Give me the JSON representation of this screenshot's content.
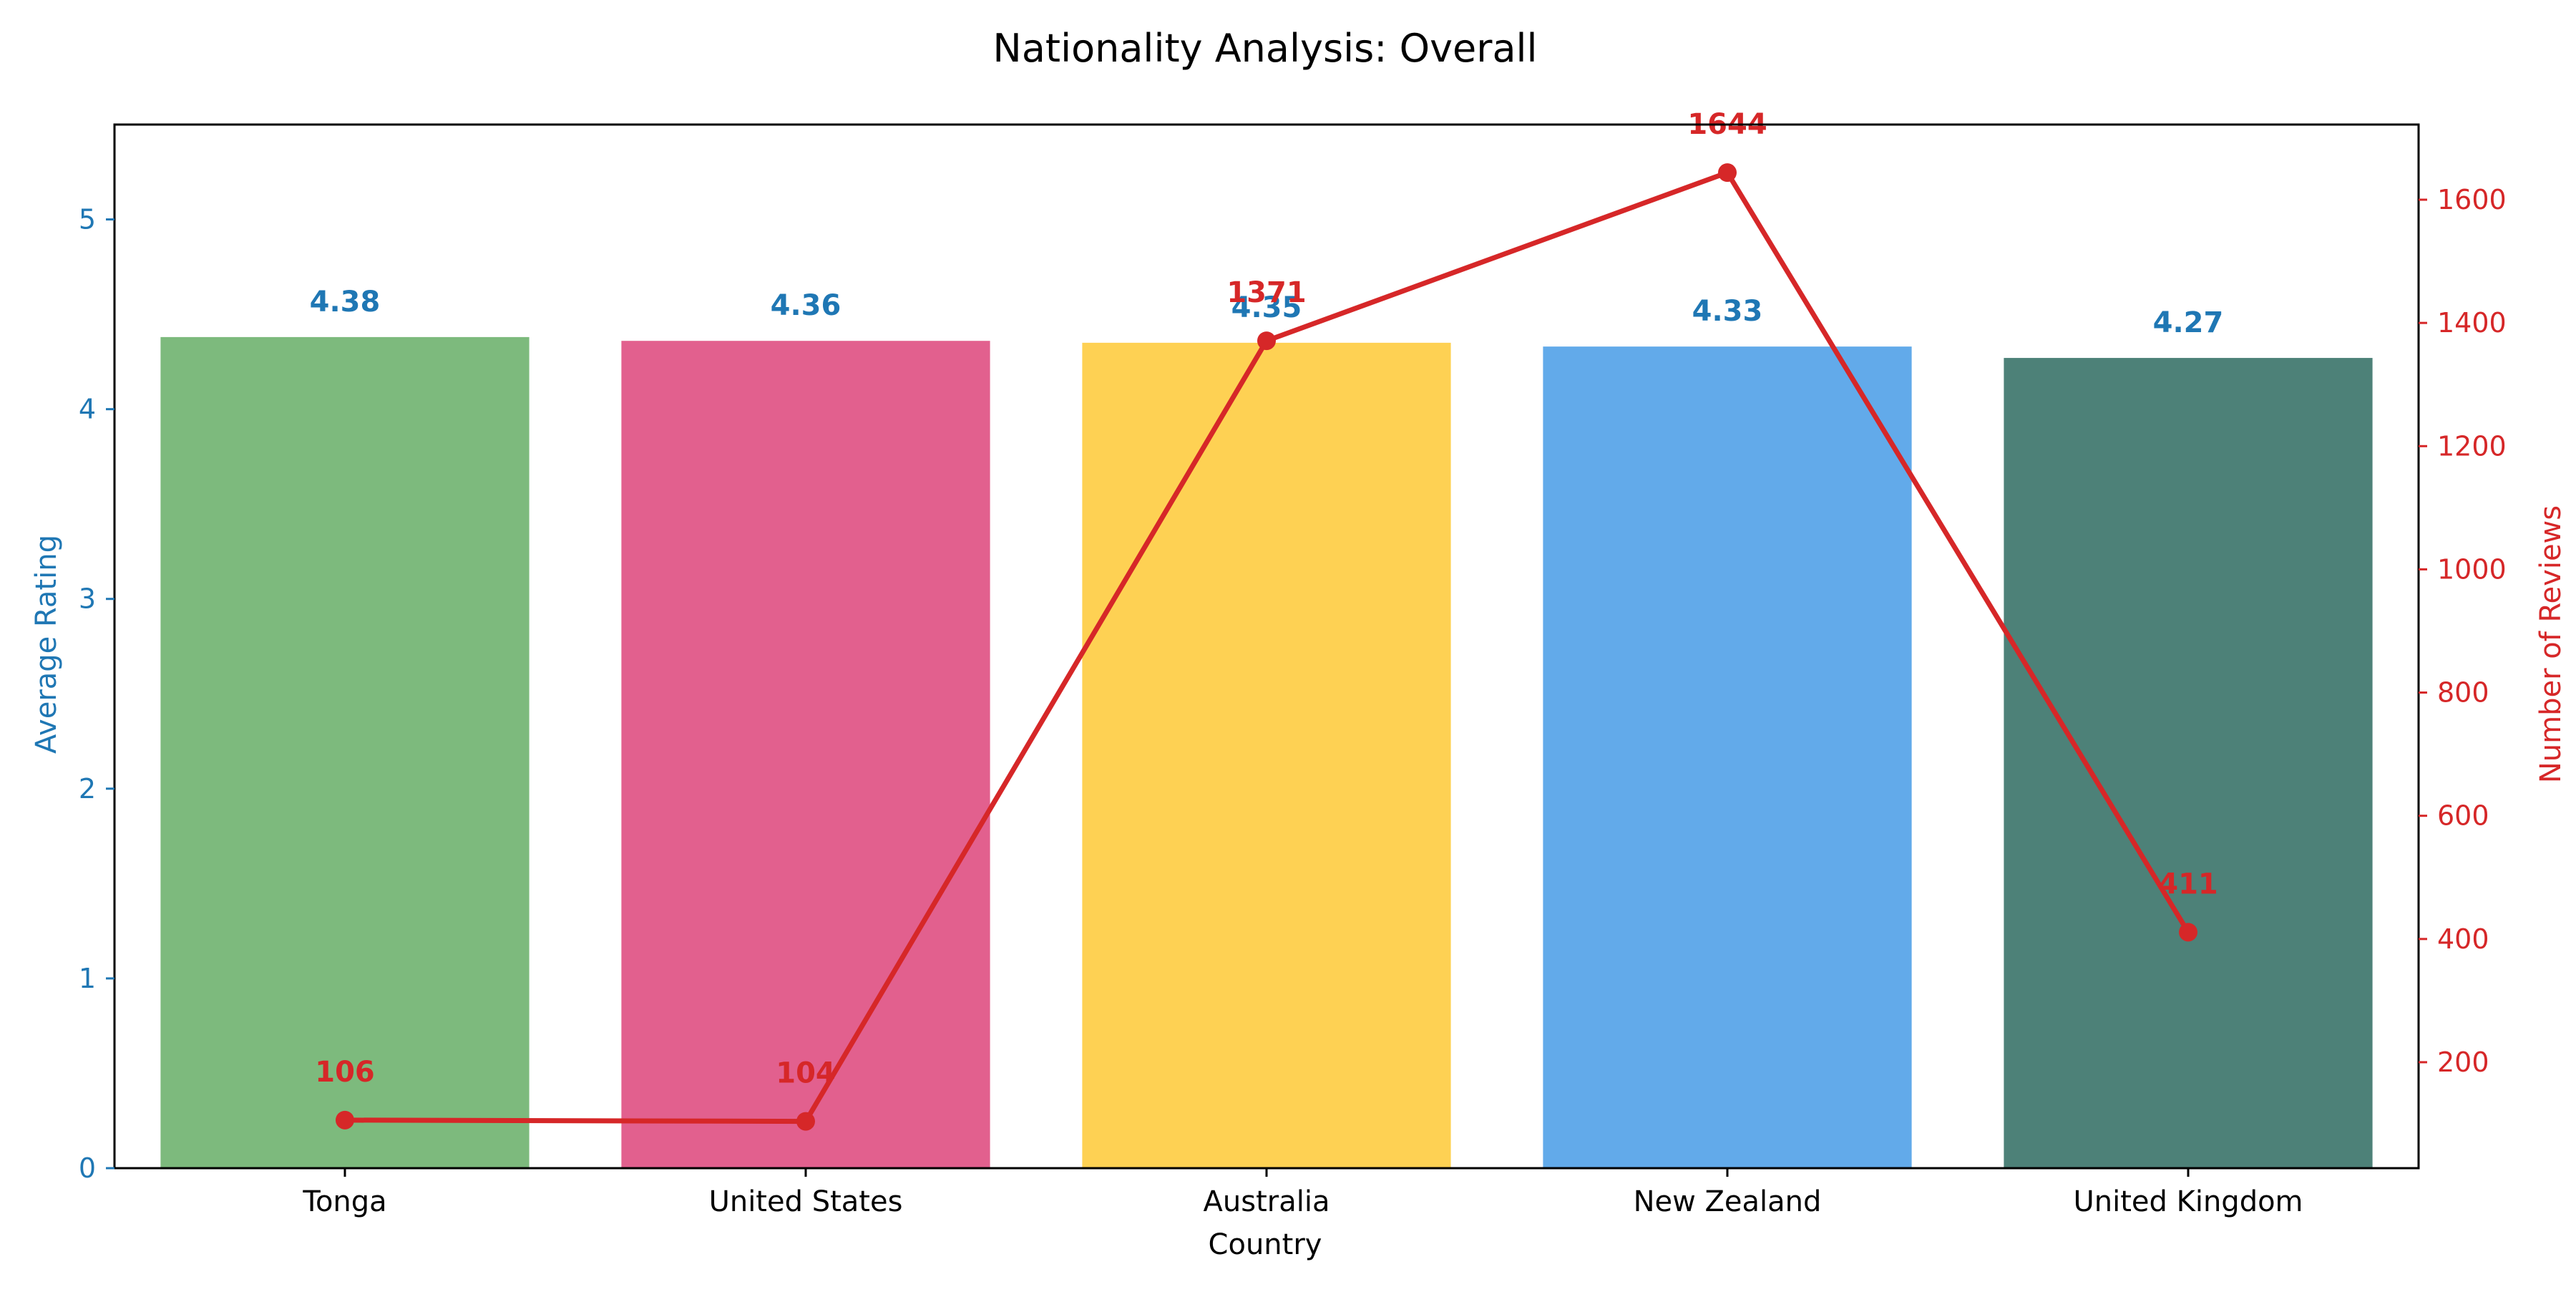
{
  "chart_data": {
    "type": "bar",
    "title": "Nationality Analysis: Overall",
    "xlabel": "Country",
    "ylabel": "Average Rating",
    "y2label": "Number of Reviews",
    "categories": [
      "Tonga",
      "United States",
      "Australia",
      "New Zealand",
      "United Kingdom"
    ],
    "series": [
      {
        "type": "bar",
        "axis": "left",
        "values": [
          4.38,
          4.36,
          4.35,
          4.33,
          4.27
        ],
        "value_labels": [
          "4.38",
          "4.36",
          "4.35",
          "4.33",
          "4.27"
        ],
        "colors": [
          "#7dba7d",
          "#e2608e",
          "#fed153",
          "#62aaea",
          "#4d8178"
        ]
      },
      {
        "type": "line",
        "axis": "right",
        "values": [
          106,
          104,
          1371,
          1644,
          411
        ],
        "value_labels": [
          "106",
          "104",
          "1371",
          "1644",
          "411"
        ],
        "color": "#d62728"
      }
    ],
    "ylim": [
      0,
      5.5
    ],
    "y_ticks": [
      0,
      1,
      2,
      3,
      4,
      5
    ],
    "y_tick_labels": [
      "0",
      "1",
      "2",
      "3",
      "4",
      "5"
    ],
    "y2lim": [
      28,
      1722
    ],
    "y2_ticks": [
      200,
      400,
      600,
      800,
      1000,
      1200,
      1400,
      1600
    ],
    "y2_tick_labels": [
      "200",
      "400",
      "600",
      "800",
      "1000",
      "1200",
      "1400",
      "1600"
    ],
    "left_axis_color": "#1f77b4",
    "right_axis_color": "#d62728",
    "grid": false,
    "legend": "none"
  }
}
